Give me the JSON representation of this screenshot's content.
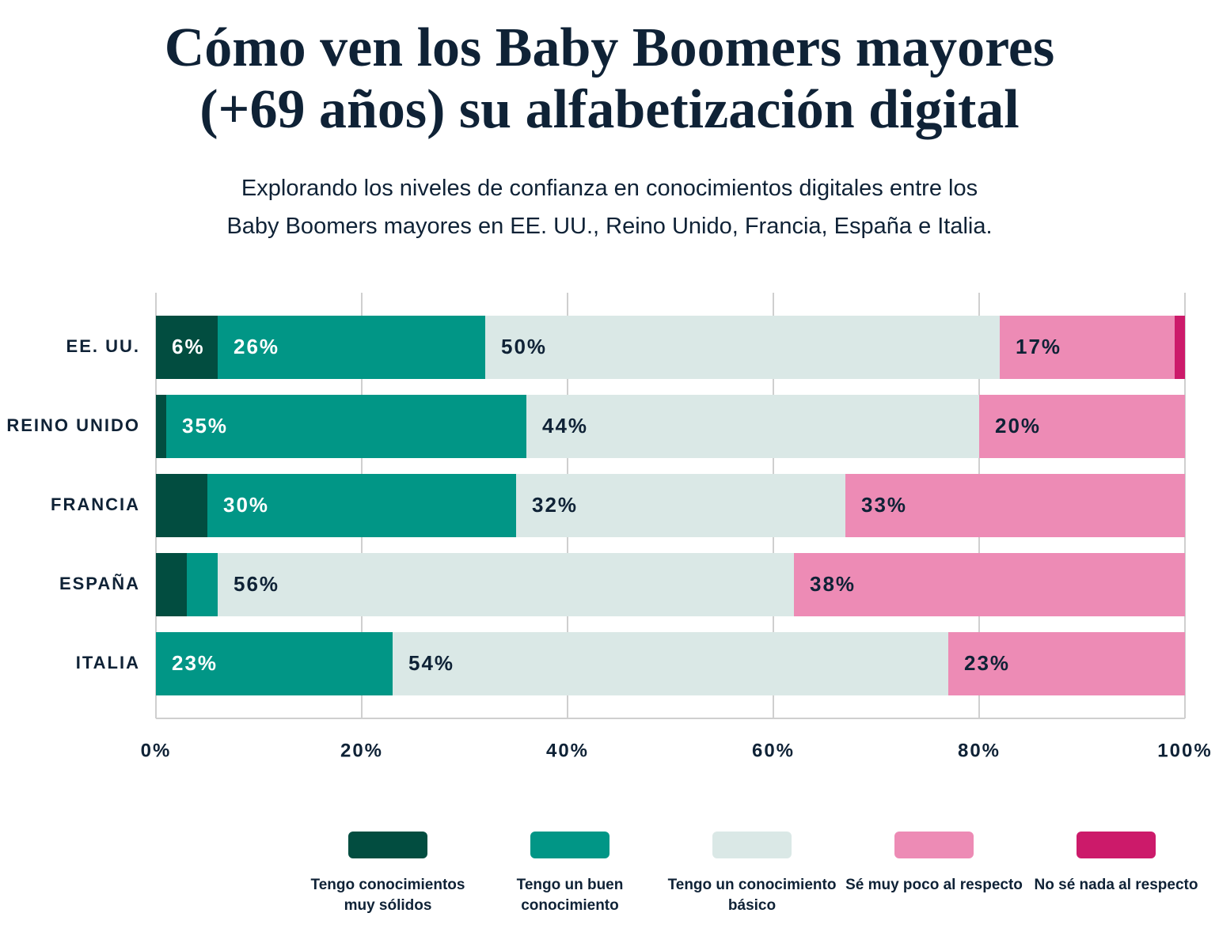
{
  "chart_data": {
    "type": "stacked-bar-horizontal",
    "title": "Cómo ven los Baby Boomers mayores\n(+69 años) su alfabetización digital",
    "subtitle": "Explorando los niveles de confianza en conocimientos digitales entre los\nBaby Boomers mayores en EE. UU., Reino Unido, Francia, España e Italia.",
    "categories": [
      "EE. UU.",
      "REINO UNIDO",
      "FRANCIA",
      "ESPAÑA",
      "ITALIA"
    ],
    "series": [
      {
        "name": "Tengo conocimientos muy sólidos",
        "color": "#024d40",
        "values": [
          6,
          1,
          5,
          3,
          0
        ],
        "value_labels": [
          "6%",
          null,
          null,
          null,
          null
        ]
      },
      {
        "name": "Tengo un buen conocimiento",
        "color": "#019686",
        "values": [
          26,
          35,
          30,
          3,
          23
        ],
        "value_labels": [
          "26%",
          "35%",
          "30%",
          null,
          "23%"
        ]
      },
      {
        "name": "Tengo un conocimiento básico",
        "color": "#dae8e6",
        "values": [
          50,
          44,
          32,
          56,
          54
        ],
        "value_labels": [
          "50%",
          "44%",
          "32%",
          "56%",
          "54%"
        ]
      },
      {
        "name": "Sé muy poco al respecto",
        "color": "#ed8bb5",
        "values": [
          17,
          20,
          33,
          38,
          23
        ],
        "value_labels": [
          "17%",
          "20%",
          "33%",
          "38%",
          "23%"
        ]
      },
      {
        "name": "No sé nada al respecto",
        "color": "#cc1a6a",
        "values": [
          1,
          0,
          0,
          0,
          0
        ],
        "value_labels": [
          null,
          null,
          null,
          null,
          null
        ]
      }
    ],
    "xlim": [
      0,
      100
    ],
    "xticks": [
      {
        "value": 0,
        "label": "0%"
      },
      {
        "value": 20,
        "label": "20%"
      },
      {
        "value": 40,
        "label": "40%"
      },
      {
        "value": 60,
        "label": "60%"
      },
      {
        "value": 80,
        "label": "80%"
      },
      {
        "value": 100,
        "label": "100%"
      }
    ],
    "grid": true
  }
}
